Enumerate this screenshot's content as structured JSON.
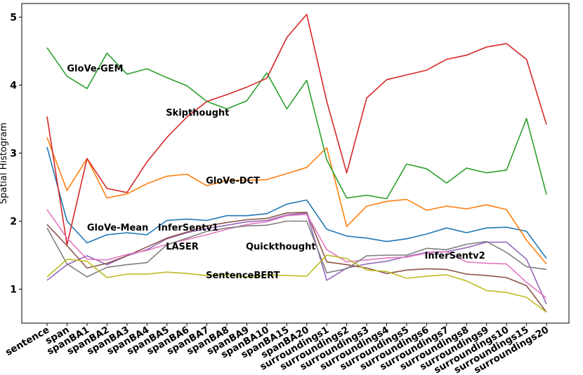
{
  "chart_data": {
    "type": "line",
    "ylabel": "Spatial Histogram",
    "ylim": [
      0.5,
      5.2
    ],
    "yticks": [
      1,
      2,
      3,
      4,
      5
    ],
    "grid": false,
    "legend": "none",
    "categories": [
      "sentence",
      "span",
      "spanBA1",
      "spanBA2",
      "spanBA3",
      "spanBA4",
      "spanBA5",
      "spanBA6",
      "spanBA7",
      "spanBA8",
      "spanBA9",
      "spanBA10",
      "spanBA15",
      "spanBA20",
      "surroundings1",
      "surroundings2",
      "surroundings3",
      "surroundings4",
      "surroundings5",
      "surroundings6",
      "surroundings7",
      "surroundings8",
      "surroundings9",
      "surroundings10",
      "surroundings15",
      "surroundings20"
    ],
    "series": [
      {
        "color": "#1f77b4",
        "values": [
          3.09,
          2.0,
          1.68,
          1.8,
          1.83,
          1.8,
          2.01,
          2.03,
          2.01,
          2.08,
          2.08,
          2.11,
          2.25,
          2.31,
          1.88,
          1.78,
          1.75,
          1.7,
          1.74,
          1.81,
          1.9,
          1.83,
          1.9,
          1.91,
          1.85,
          1.45
        ]
      },
      {
        "color": "#ff7f0e",
        "values": [
          3.23,
          2.45,
          2.92,
          2.34,
          2.4,
          2.55,
          2.66,
          2.69,
          2.52,
          2.6,
          2.6,
          2.61,
          2.7,
          2.79,
          3.08,
          1.92,
          2.22,
          2.29,
          2.32,
          2.16,
          2.22,
          2.18,
          2.24,
          2.17,
          1.72,
          1.37
        ]
      },
      {
        "color": "#2ca02c",
        "values": [
          4.55,
          4.13,
          3.95,
          4.47,
          4.16,
          4.24,
          4.11,
          3.99,
          3.76,
          3.65,
          3.77,
          4.18,
          3.65,
          4.07,
          2.9,
          2.34,
          2.38,
          2.33,
          2.84,
          2.77,
          2.56,
          2.78,
          2.71,
          2.75,
          3.51,
          2.39
        ]
      },
      {
        "color": "#d62728",
        "values": [
          3.54,
          1.65,
          2.92,
          2.48,
          2.42,
          2.87,
          3.23,
          3.53,
          3.76,
          3.86,
          3.97,
          4.1,
          4.7,
          5.04,
          3.76,
          2.71,
          3.81,
          4.08,
          4.15,
          4.22,
          4.38,
          4.44,
          4.56,
          4.61,
          4.38,
          3.42
        ]
      },
      {
        "color": "#9467bd",
        "values": [
          1.13,
          1.36,
          1.49,
          1.36,
          1.49,
          1.58,
          1.74,
          1.83,
          1.89,
          1.94,
          1.99,
          2.01,
          2.09,
          2.12,
          1.13,
          1.31,
          1.37,
          1.41,
          1.48,
          1.54,
          1.55,
          1.61,
          1.69,
          1.69,
          1.44,
          0.78
        ]
      },
      {
        "color": "#8c564b",
        "values": [
          1.95,
          1.64,
          1.31,
          1.38,
          1.49,
          1.62,
          1.75,
          1.84,
          1.93,
          1.98,
          2.02,
          2.04,
          2.12,
          2.13,
          1.4,
          1.36,
          1.31,
          1.23,
          1.28,
          1.3,
          1.29,
          1.22,
          1.2,
          1.17,
          1.05,
          0.66
        ]
      },
      {
        "color": "#e377c2",
        "values": [
          2.17,
          1.75,
          1.44,
          1.43,
          1.51,
          1.57,
          1.66,
          1.73,
          1.8,
          1.88,
          1.95,
          1.99,
          2.08,
          2.1,
          1.58,
          1.4,
          1.43,
          1.46,
          1.47,
          1.53,
          1.55,
          1.4,
          1.38,
          1.37,
          1.1,
          0.87
        ]
      },
      {
        "color": "#7f7f7f",
        "values": [
          1.9,
          1.37,
          1.18,
          1.32,
          1.36,
          1.39,
          1.65,
          1.75,
          1.85,
          1.9,
          1.93,
          1.94,
          2.0,
          2.0,
          1.24,
          1.3,
          1.49,
          1.5,
          1.5,
          1.6,
          1.58,
          1.66,
          1.7,
          1.54,
          1.33,
          1.29
        ]
      },
      {
        "color": "#bcbd22",
        "values": [
          1.18,
          1.44,
          1.41,
          1.17,
          1.22,
          1.22,
          1.25,
          1.23,
          1.2,
          1.21,
          1.18,
          1.21,
          1.2,
          1.19,
          1.5,
          1.45,
          1.28,
          1.26,
          1.16,
          1.19,
          1.21,
          1.12,
          0.98,
          0.95,
          0.88,
          0.66
        ]
      }
    ],
    "annotations": [
      {
        "text": "GloVe-GEM",
        "x": 1.0,
        "y": 4.2
      },
      {
        "text": "Skipthought",
        "x": 5.95,
        "y": 3.55
      },
      {
        "text": "GloVe-DCT",
        "x": 7.95,
        "y": 2.55
      },
      {
        "text": "GloVe-Mean",
        "x": 2.0,
        "y": 1.86
      },
      {
        "text": "InferSentv1",
        "x": 5.55,
        "y": 1.86
      },
      {
        "text": "LASER",
        "x": 5.95,
        "y": 1.58
      },
      {
        "text": "Quickthought",
        "x": 9.95,
        "y": 1.58
      },
      {
        "text": "InferSentv2",
        "x": 18.9,
        "y": 1.45
      },
      {
        "text": "SentenceBERT",
        "x": 7.95,
        "y": 1.16
      }
    ]
  }
}
